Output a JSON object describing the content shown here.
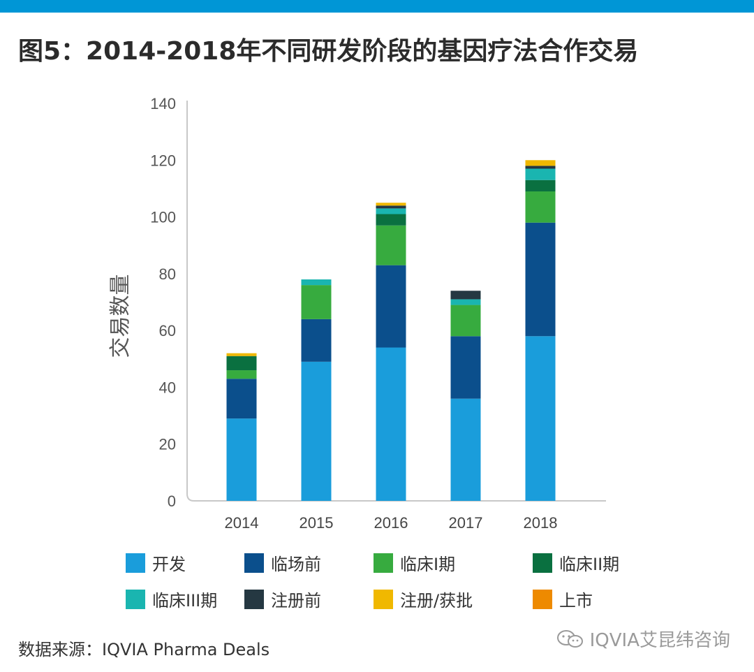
{
  "title": "图5：2014-2018年不同研发阶段的基因疗法合作交易",
  "source": "数据来源：IQVIA Pharma Deals",
  "watermark": "IQVIA艾昆纬咨询",
  "colors": {
    "accent_bar": "#0096d6",
    "axis": "#c8c8c8"
  },
  "chart_data": {
    "type": "bar",
    "stacked": true,
    "categories": [
      "2014",
      "2015",
      "2016",
      "2017",
      "2018"
    ],
    "ylabel": "交易数量",
    "xlabel": "",
    "ylim": [
      0,
      140
    ],
    "yticks": [
      0,
      20,
      40,
      60,
      80,
      100,
      120,
      140
    ],
    "grid": false,
    "legend_position": "bottom",
    "series": [
      {
        "name": "开发",
        "color": "#1a9ddb",
        "values": [
          29,
          49,
          54,
          36,
          58
        ]
      },
      {
        "name": "临场前",
        "color": "#0b4f8c",
        "values": [
          14,
          15,
          29,
          22,
          40
        ]
      },
      {
        "name": "临床I期",
        "color": "#37ab3f",
        "values": [
          3,
          12,
          14,
          11,
          11
        ]
      },
      {
        "name": "临床II期",
        "color": "#0a7040",
        "values": [
          5,
          0,
          4,
          0,
          4
        ]
      },
      {
        "name": "临床III期",
        "color": "#1ab5b0",
        "values": [
          0,
          2,
          2,
          2,
          4
        ]
      },
      {
        "name": "注册前",
        "color": "#253842",
        "values": [
          0,
          0,
          1,
          3,
          1
        ]
      },
      {
        "name": "注册/获批",
        "color": "#f0b800",
        "values": [
          1,
          0,
          1,
          0,
          2
        ]
      },
      {
        "name": "上市",
        "color": "#ee8a00",
        "values": [
          0,
          0,
          0,
          0,
          0
        ]
      }
    ]
  }
}
